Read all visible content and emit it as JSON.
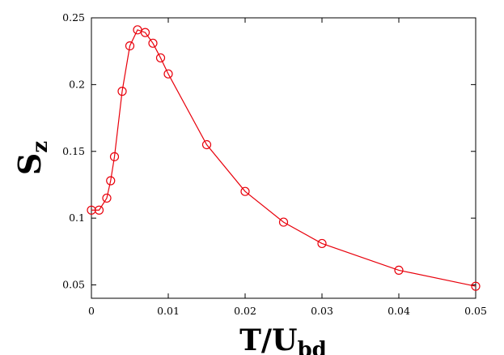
{
  "chart_data": {
    "type": "line",
    "xlabel": "T/U",
    "xlabel_sub": "bd",
    "ylabel": "S",
    "ylabel_sub": "z",
    "xlim": [
      0,
      0.05
    ],
    "ylim": [
      0.04,
      0.25
    ],
    "x_ticks": [
      0,
      0.01,
      0.02,
      0.03,
      0.04,
      0.05
    ],
    "x_tick_labels": [
      "0",
      "0.01",
      "0.02",
      "0.03",
      "0.04",
      "0.05"
    ],
    "y_ticks": [
      0.05,
      0.1,
      0.15,
      0.2,
      0.25
    ],
    "y_tick_labels": [
      "0.05",
      "0.1",
      "0.15",
      "0.2",
      "0.25"
    ],
    "grid": false,
    "legend": "none",
    "series": [
      {
        "color": "#e8000b",
        "marker": "open-circle",
        "x": [
          0,
          0.001,
          0.002,
          0.0025,
          0.003,
          0.004,
          0.005,
          0.006,
          0.007,
          0.008,
          0.009,
          0.01,
          0.015,
          0.02,
          0.025,
          0.03,
          0.04,
          0.05
        ],
        "y": [
          0.106,
          0.106,
          0.115,
          0.128,
          0.146,
          0.195,
          0.229,
          0.241,
          0.239,
          0.231,
          0.22,
          0.208,
          0.155,
          0.12,
          0.097,
          0.081,
          0.061,
          0.049
        ]
      }
    ]
  }
}
